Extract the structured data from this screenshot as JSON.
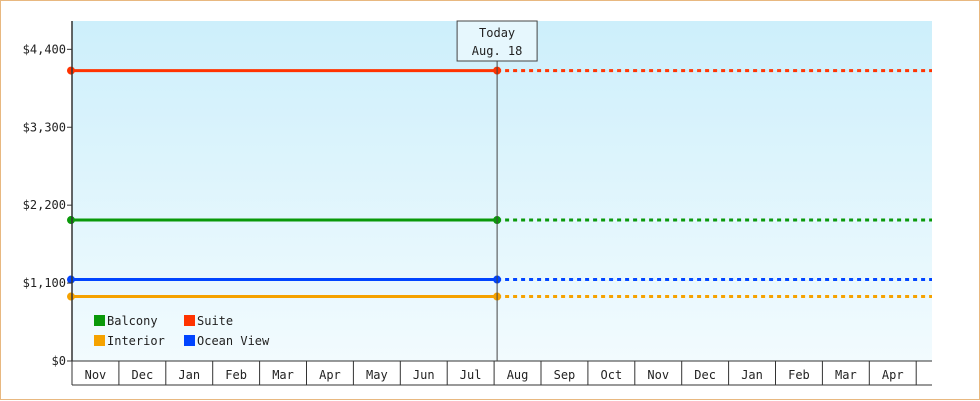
{
  "chart_data": {
    "type": "line",
    "title": "",
    "xlabel": "",
    "ylabel": "",
    "ylim": [
      0,
      4800
    ],
    "yticks": [
      0,
      1100,
      2200,
      3300,
      4400
    ],
    "ytick_labels": [
      "$0",
      "$1,100",
      "$2,200",
      "$3,300",
      "$4,400"
    ],
    "months": [
      "Nov",
      "Dec",
      "Jan",
      "Feb",
      "Mar",
      "Apr",
      "May",
      "Jun",
      "Jul",
      "Aug",
      "Sep",
      "Oct",
      "Nov",
      "Dec",
      "Jan",
      "Feb",
      "Mar",
      "Apr"
    ],
    "today": {
      "label": "Today",
      "date": "Aug. 18",
      "month_index": 9
    },
    "grid": false,
    "legend_position": "bottom-left",
    "series": [
      {
        "name": "Suite",
        "color": "#ff3300",
        "value": 4100
      },
      {
        "name": "Balcony",
        "color": "#0a990a",
        "value": 1990
      },
      {
        "name": "Ocean View",
        "color": "#0044ff",
        "value": 1150
      },
      {
        "name": "Interior",
        "color": "#f5a200",
        "value": 910
      }
    ],
    "legend": [
      {
        "name": "Balcony",
        "color": "#0a990a"
      },
      {
        "name": "Suite",
        "color": "#ff3300"
      },
      {
        "name": "Interior",
        "color": "#f5a200"
      },
      {
        "name": "Ocean View",
        "color": "#0044ff"
      }
    ],
    "background_top": "#cdeffb",
    "background_bottom": "#f2fbfe"
  }
}
